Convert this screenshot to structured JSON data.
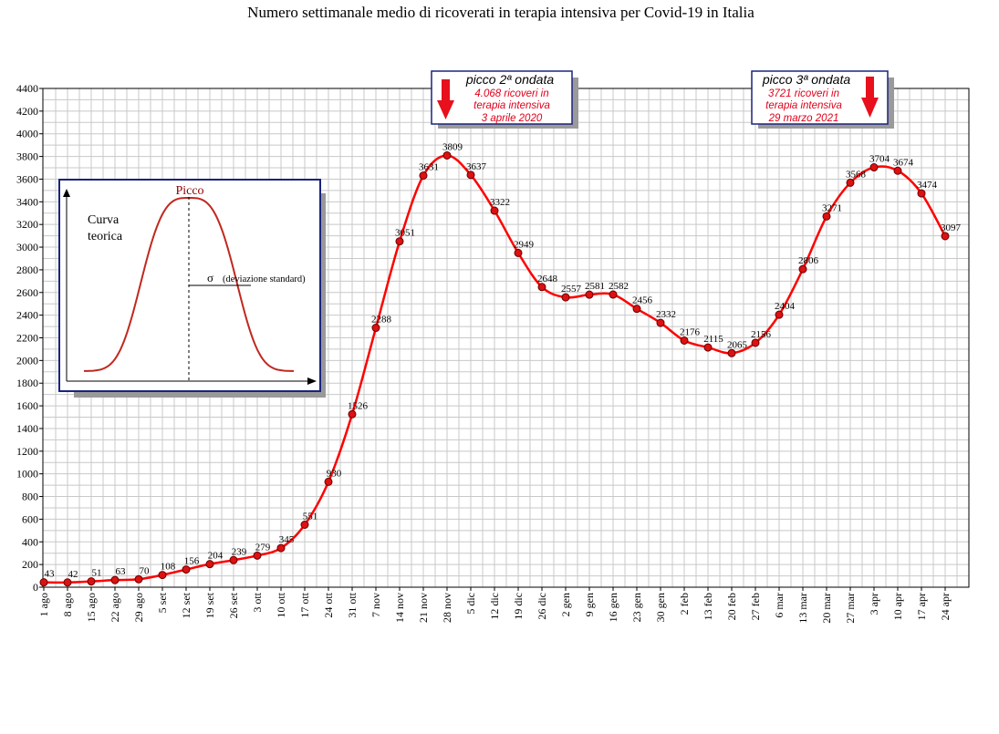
{
  "chart_data": {
    "type": "line",
    "title": "Numero settimanale medio di ricoverati in terapia intensiva per Covid-19 in Italia",
    "xlabel": "",
    "ylabel": "",
    "ylim": [
      0,
      4400
    ],
    "ytick_step": 200,
    "grid": true,
    "x": [
      "1 ago",
      "8 ago",
      "15 ago",
      "22 ago",
      "29 ago",
      "5 set",
      "12 set",
      "19 set",
      "26 set",
      "3 ott",
      "10 ott",
      "17 ott",
      "24 ott",
      "31 ott",
      "7 nov",
      "14 nov",
      "21 nov",
      "28 nov",
      "5 dic",
      "12 dic",
      "19 dic",
      "26 dic",
      "2 gen",
      "9 gen",
      "16 gen",
      "23 gen",
      "30 gen",
      "2 feb",
      "13 feb",
      "20 feb",
      "27 feb",
      "6 mar",
      "13 mar",
      "20 mar",
      "27 mar",
      "3 apr",
      "10 apr",
      "17 apr",
      "24 apr"
    ],
    "series": [
      {
        "values": [
          43,
          42,
          51,
          63,
          70,
          108,
          156,
          204,
          239,
          279,
          345,
          551,
          930,
          1526,
          2288,
          3051,
          3631,
          3809,
          3637,
          3322,
          2949,
          2648,
          2557,
          2581,
          2582,
          2456,
          2332,
          2176,
          2115,
          2065,
          2156,
          2404,
          2806,
          3271,
          3568,
          3704,
          3674,
          3474,
          3097
        ],
        "color": "#ff0000",
        "marker_color": "#dd1111"
      }
    ],
    "annotations": [
      {
        "id": "peak2",
        "heading": "picco 2ª ondata",
        "lines": [
          "4.068 ricoveri in",
          "terapia intensiva",
          "3 aprile 2020"
        ],
        "arrow_color": "#e8101c"
      },
      {
        "id": "peak3",
        "heading": "picco 3ª ondata",
        "lines": [
          "3721 ricoveri in",
          "terapia intensiva",
          "29 marzo 2021"
        ],
        "arrow_color": "#e8101c"
      }
    ],
    "inset": {
      "title": "Picco",
      "label_line1": "Curva",
      "label_line2": "teorica",
      "sigma_symbol": "σ",
      "sigma_text": "(deviazione standard)",
      "curve_color": "#c0281e"
    },
    "colors": {
      "grid": "#c8c8c8",
      "axis": "#000000",
      "line": "#ff0000",
      "box_border": "#1a237e",
      "shadow": "#999999"
    }
  }
}
